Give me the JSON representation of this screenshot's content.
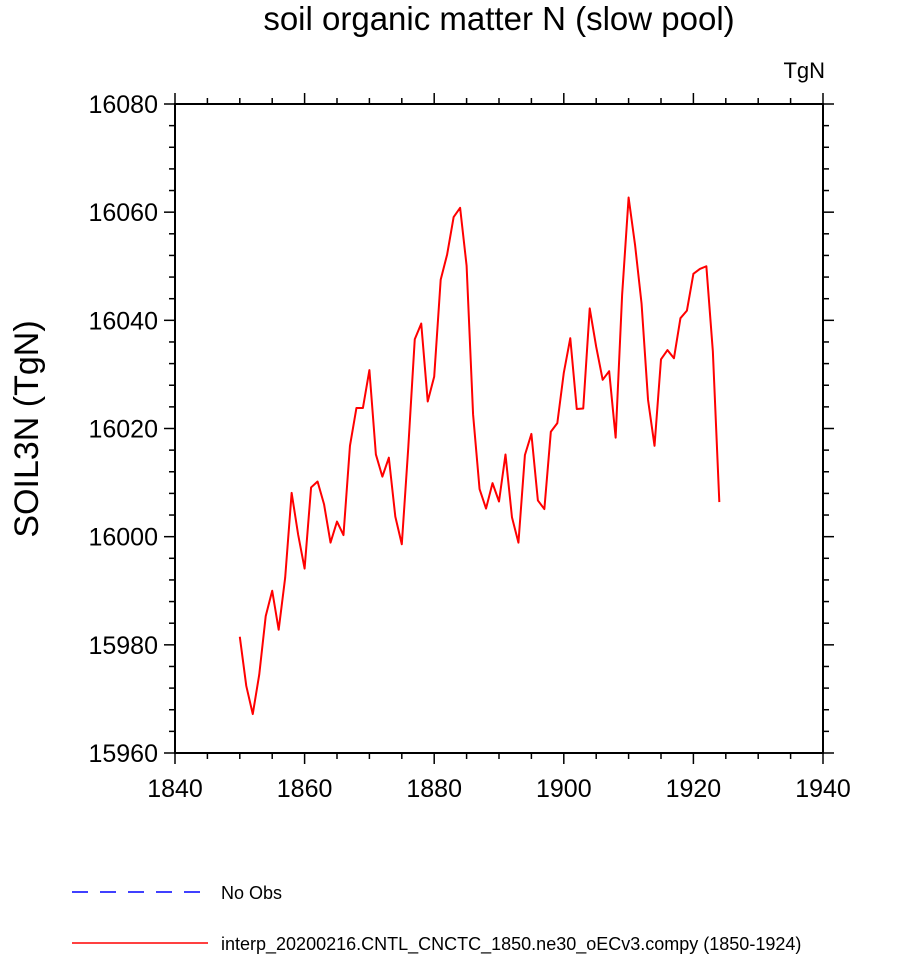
{
  "chart_data": {
    "type": "line",
    "title": "soil organic matter N (slow pool)",
    "units_label": "TgN",
    "ylabel": "SOIL3N  (TgN)",
    "xlabel": "",
    "xlim": [
      1840,
      1940
    ],
    "ylim": [
      15960,
      16080
    ],
    "xticks": [
      1840,
      1860,
      1880,
      1900,
      1920,
      1940
    ],
    "yticks": [
      15960,
      15980,
      16000,
      16020,
      16040,
      16060,
      16080
    ],
    "grid": false,
    "legend_position": "bottom",
    "series": [
      {
        "name": "interp_20200216.CNTL_CNCTC_1850.ne30_oECv3.compy (1850-1924)",
        "color": "#ff0000",
        "dash": "solid",
        "x": [
          1850,
          1851,
          1852,
          1853,
          1854,
          1855,
          1856,
          1857,
          1858,
          1859,
          1860,
          1861,
          1862,
          1863,
          1864,
          1865,
          1866,
          1867,
          1868,
          1869,
          1870,
          1871,
          1872,
          1873,
          1874,
          1875,
          1876,
          1877,
          1878,
          1879,
          1880,
          1881,
          1882,
          1883,
          1884,
          1885,
          1886,
          1887,
          1888,
          1889,
          1890,
          1891,
          1892,
          1893,
          1894,
          1895,
          1896,
          1897,
          1898,
          1899,
          1900,
          1901,
          1902,
          1903,
          1904,
          1905,
          1906,
          1907,
          1908,
          1909,
          1910,
          1911,
          1912,
          1913,
          1914,
          1915,
          1916,
          1917,
          1918,
          1919,
          1920,
          1921,
          1922,
          1923,
          1924
        ],
        "values": [
          15981.5,
          15972.4,
          15967.2,
          15974.5,
          15985.3,
          15990.0,
          15982.8,
          15992.4,
          16008.1,
          16000.4,
          15994.1,
          16009.1,
          16010.2,
          16006.0,
          15998.9,
          16002.8,
          16000.3,
          16016.8,
          16023.8,
          16023.8,
          16030.8,
          16015.2,
          16011.1,
          16014.6,
          16003.7,
          15998.6,
          16016.5,
          16036.5,
          16039.4,
          16025.0,
          16029.6,
          16047.5,
          16052.2,
          16059.1,
          16060.8,
          16050.1,
          16022.6,
          16008.8,
          16005.2,
          16009.9,
          16006.5,
          16015.2,
          16003.6,
          15998.9,
          16015.1,
          16019.0,
          16006.7,
          16005.1,
          16019.4,
          16021.0,
          16030.3,
          16036.7,
          16023.6,
          16023.7,
          16042.2,
          16035.1,
          16029.0,
          16030.6,
          16018.3,
          16044.7,
          16062.7,
          16053.9,
          16043.1,
          16025.3,
          16016.8,
          16032.8,
          16034.5,
          16033.0,
          16040.4,
          16041.8,
          16048.6,
          16049.5,
          16050.0,
          16034.3,
          16006.4
        ]
      },
      {
        "name": "No Obs",
        "color": "#0000ff",
        "dash": "dashed",
        "x": [],
        "values": []
      }
    ]
  }
}
